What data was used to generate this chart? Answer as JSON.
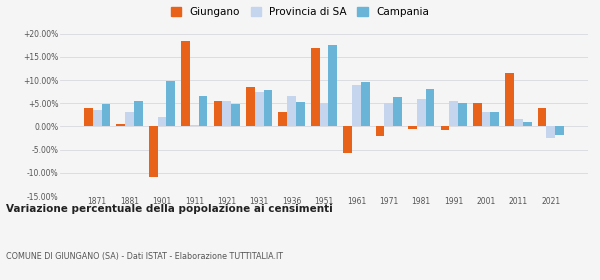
{
  "years": [
    1871,
    1881,
    1901,
    1911,
    1921,
    1931,
    1936,
    1951,
    1961,
    1971,
    1981,
    1991,
    2001,
    2011,
    2021
  ],
  "giungano": [
    4.0,
    0.5,
    -11.0,
    18.5,
    5.5,
    8.5,
    3.0,
    17.0,
    -5.8,
    -2.0,
    -0.5,
    -0.8,
    5.0,
    11.5,
    4.0
  ],
  "provincia_sa": [
    3.5,
    3.0,
    2.0,
    0.2,
    5.5,
    7.5,
    6.5,
    5.0,
    9.0,
    5.0,
    6.0,
    5.5,
    3.0,
    1.5,
    -2.5
  ],
  "campania": [
    4.8,
    5.5,
    9.8,
    6.5,
    4.8,
    7.8,
    5.2,
    17.5,
    9.5,
    6.3,
    8.0,
    5.0,
    3.0,
    1.0,
    -1.8
  ],
  "color_giungano": "#e8621a",
  "color_provincia": "#c5d5ed",
  "color_campania": "#6ab4d8",
  "ylim": [
    -15,
    20
  ],
  "yticks": [
    -15,
    -10,
    -5,
    0,
    5,
    10,
    15,
    20
  ],
  "ytick_labels": [
    "-15.00%",
    "-10.00%",
    "-5.00%",
    "0.00%",
    "+5.00%",
    "+10.00%",
    "+15.00%",
    "+20.00%"
  ],
  "title": "Variazione percentuale della popolazione ai censimenti",
  "subtitle": "COMUNE DI GIUNGANO (SA) - Dati ISTAT - Elaborazione TUTTITALIA.IT",
  "legend_labels": [
    "Giungano",
    "Provincia di SA",
    "Campania"
  ],
  "background_color": "#f5f5f5",
  "grid_color": "#d8d8e0"
}
